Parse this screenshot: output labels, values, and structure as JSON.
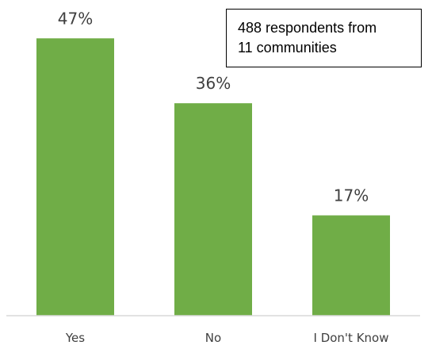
{
  "chart_data": {
    "type": "bar",
    "categories": [
      "Yes",
      "No",
      "I Don't Know"
    ],
    "values": [
      47,
      36,
      17
    ],
    "data_labels": [
      "47%",
      "36%",
      "17%"
    ],
    "value_unit": "%",
    "title": "",
    "xlabel": "",
    "ylabel": "",
    "ylim": [
      0,
      50
    ],
    "grid": false,
    "legend": "none",
    "bar_color": "#70ad47",
    "axis_color": "#d9d9d9",
    "annotation": {
      "line1": "488 respondents from",
      "line2": "11 communities"
    }
  }
}
